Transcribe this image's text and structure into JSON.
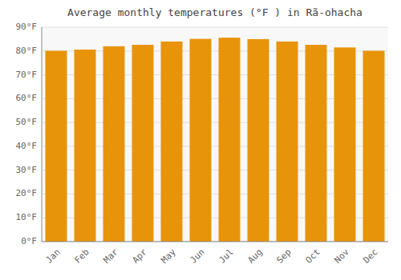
{
  "chart_data": {
    "type": "bar",
    "title": "Average monthly temperatures (°F ) in Rã-ohacha",
    "categories": [
      "Jan",
      "Feb",
      "Mar",
      "Apr",
      "May",
      "Jun",
      "Jul",
      "Aug",
      "Sep",
      "Oct",
      "Nov",
      "Dec"
    ],
    "values": [
      80.1,
      80.6,
      82.0,
      82.6,
      84.0,
      85.1,
      85.6,
      85.0,
      84.0,
      82.6,
      81.5,
      80.1
    ],
    "color": "#E8940A",
    "ylim": [
      0,
      90
    ],
    "yticks": [
      {
        "value": 0,
        "label": "0°F"
      },
      {
        "value": 10,
        "label": "10°F"
      },
      {
        "value": 20,
        "label": "20°F"
      },
      {
        "value": 30,
        "label": "30°F"
      },
      {
        "value": 40,
        "label": "40°F"
      },
      {
        "value": 50,
        "label": "50°F"
      },
      {
        "value": 60,
        "label": "60°F"
      },
      {
        "value": 70,
        "label": "70°F"
      },
      {
        "value": 80,
        "label": "80°F"
      },
      {
        "value": 90,
        "label": "90°F"
      }
    ],
    "grid": true
  }
}
